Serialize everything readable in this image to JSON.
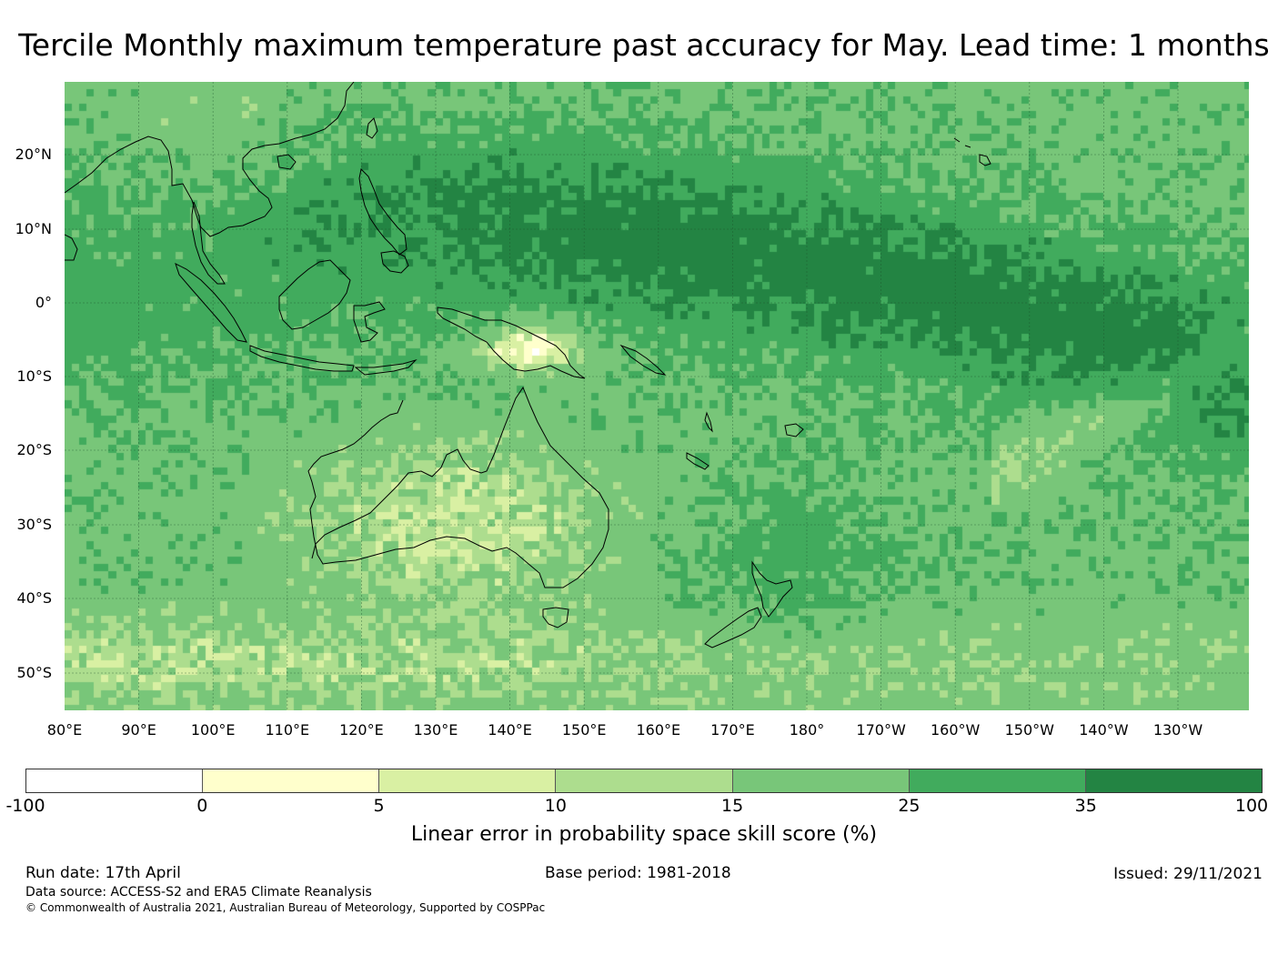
{
  "title": "Tercile Monthly maximum temperature past accuracy for May. Lead time: 1 months",
  "map": {
    "lat_labels": [
      "20°N",
      "10°N",
      "0°",
      "10°S",
      "20°S",
      "30°S",
      "40°S",
      "50°S"
    ],
    "lon_labels": [
      "80°E",
      "90°E",
      "100°E",
      "110°E",
      "120°E",
      "130°E",
      "140°E",
      "150°E",
      "160°E",
      "170°E",
      "180°",
      "170°W",
      "160°W",
      "150°W",
      "140°W",
      "130°W"
    ]
  },
  "colorbar": {
    "ticks": [
      "-100",
      "0",
      "5",
      "10",
      "15",
      "25",
      "35",
      "100"
    ],
    "colors": [
      "#ffffff",
      "#ffffcc",
      "#d9f0a3",
      "#addd8e",
      "#78c679",
      "#41ab5d",
      "#238443"
    ],
    "label": "Linear error in probability space skill score (%)"
  },
  "footer": {
    "run_date": "Run date: 17th April",
    "base_period": "Base period: 1981-2018",
    "issued": "Issued: 29/11/2021",
    "data_source": "Data source: ACCESS-S2 and ERA5 Climate Reanalysis",
    "copyright": "© Commonwealth of Australia 2021, Australian Bureau of Meteorology, Supported by COSPPac"
  }
}
